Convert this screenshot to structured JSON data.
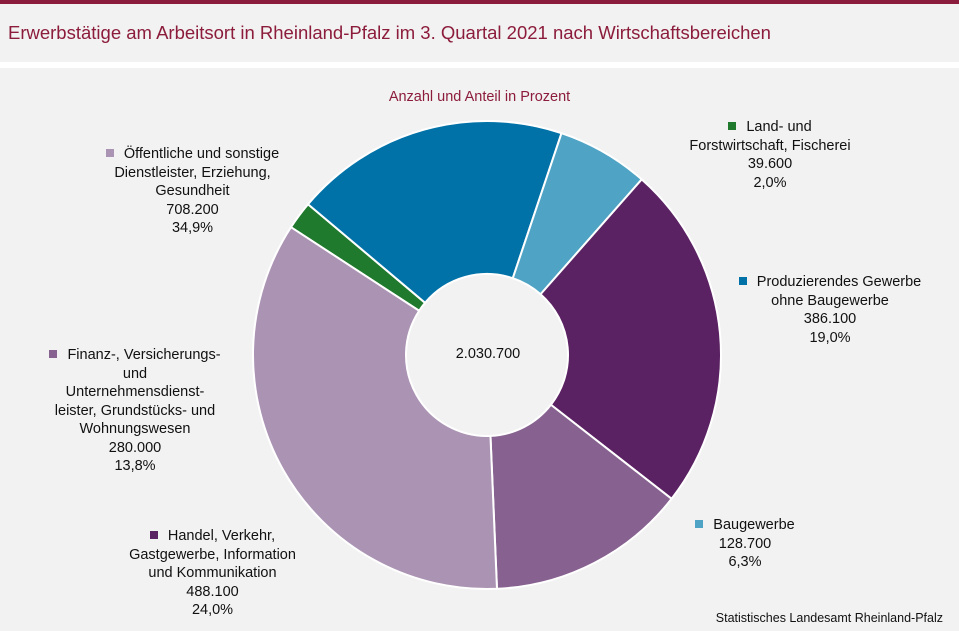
{
  "title": "Erwerbstätige am Arbeitsort in Rheinland-Pfalz im 3. Quartal 2021 nach Wirtschaftsbereichen",
  "chart_data": {
    "type": "pie",
    "subtitle": "Anzahl und Anteil in Prozent",
    "total": "2.030.700",
    "source": "Statistisches Landesamt Rheinland-Pfalz",
    "slices": [
      {
        "lines": [
          "Land- und",
          "Forstwirtschaft, Fischerei"
        ],
        "value": 39600,
        "value_label": "39.600",
        "percent": 2.0,
        "percent_label": "2,0%",
        "color": "#1f7a2e"
      },
      {
        "lines": [
          "Produzierendes Gewerbe",
          "ohne Baugewerbe"
        ],
        "value": 386100,
        "value_label": "386.100",
        "percent": 19.0,
        "percent_label": "19,0%",
        "color": "#0072a8"
      },
      {
        "lines": [
          "Baugewerbe"
        ],
        "value": 128700,
        "value_label": "128.700",
        "percent": 6.3,
        "percent_label": "6,3%",
        "color": "#4fa3c4"
      },
      {
        "lines": [
          "Handel, Verkehr,",
          "Gastgewerbe, Information",
          "und Kommunikation"
        ],
        "value": 488100,
        "value_label": "488.100",
        "percent": 24.0,
        "percent_label": "24,0%",
        "color": "#5b2263"
      },
      {
        "lines": [
          "Finanz-, Versicherungs-",
          "und",
          "Unternehmensdienst-",
          "leister, Grundstücks- und",
          "Wohnungswesen"
        ],
        "value": 280000,
        "value_label": "280.000",
        "percent": 13.8,
        "percent_label": "13,8%",
        "color": "#876290"
      },
      {
        "lines": [
          "Öffentliche und sonstige",
          "Dienstleister, Erziehung,",
          "Gesundheit"
        ],
        "value": 708200,
        "value_label": "708.200",
        "percent": 34.9,
        "percent_label": "34,9%",
        "color": "#ab93b3"
      }
    ]
  }
}
